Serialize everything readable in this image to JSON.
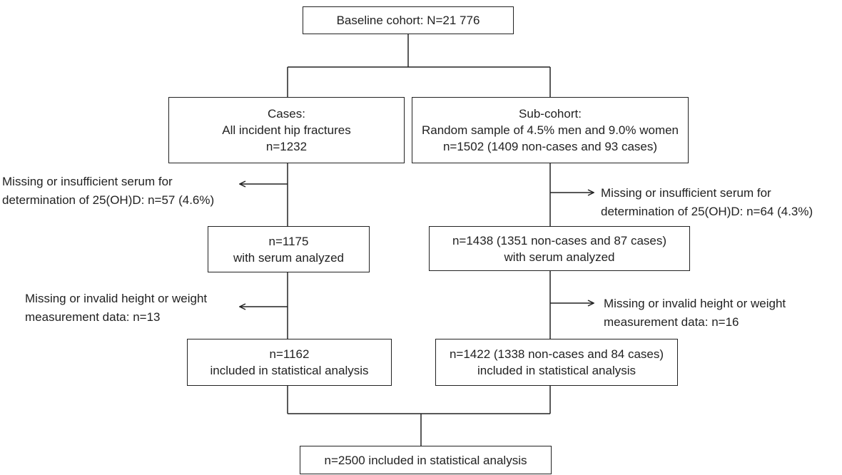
{
  "boxes": {
    "baseline": [
      "Baseline cohort: N=21 776"
    ],
    "cases": [
      "Cases:",
      "All incident hip fractures",
      "n=1232"
    ],
    "subcohort": [
      "Sub-cohort:",
      "Random sample of 4.5% men and 9.0% women",
      "n=1502 (1409 non-cases and 93 cases)"
    ],
    "cases_serum": [
      "n=1175",
      "with serum analyzed"
    ],
    "sub_serum": [
      "n=1438 (1351 non-cases and 87 cases)",
      "with serum analyzed"
    ],
    "cases_final": [
      "n=1162",
      "included in statistical analysis"
    ],
    "sub_final": [
      "n=1422 (1338 non-cases and 84 cases)",
      "included in statistical analysis"
    ],
    "total": [
      "n=2500 included in statistical analysis"
    ]
  },
  "exclusions": {
    "cases_serum": [
      "Missing or insufficient serum for",
      "determination of 25(OH)D: n=57 (4.6%)"
    ],
    "sub_serum": [
      "Missing or insufficient serum for",
      "determination of 25(OH)D: n=64 (4.3%)"
    ],
    "cases_measure": [
      "Missing or invalid height or weight",
      "measurement data: n=13"
    ],
    "sub_measure": [
      "Missing or invalid height or weight",
      "measurement data: n=16"
    ]
  }
}
